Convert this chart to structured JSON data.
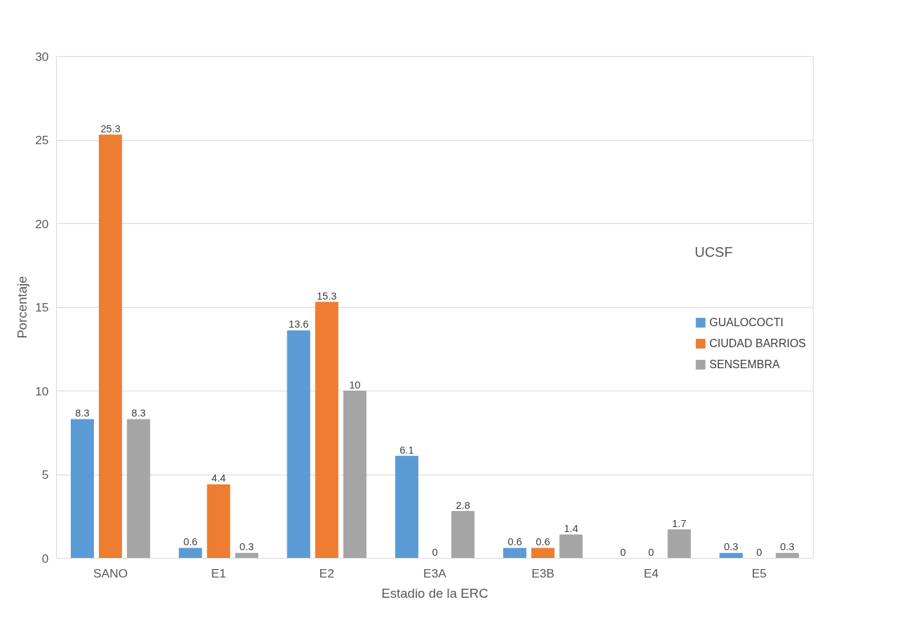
{
  "chart_data": {
    "type": "bar",
    "xlabel": "Estadio de la ERC",
    "ylabel": "Porcentaje",
    "legend_title": "UCSF",
    "categories": [
      "SANO",
      "E1",
      "E2",
      "E3A",
      "E3B",
      "E4",
      "E5"
    ],
    "series": [
      {
        "name": "GUALOCOCTI",
        "color": "#5b9bd5",
        "values": [
          8.3,
          0.6,
          13.6,
          6.1,
          0.6,
          0,
          0.3
        ]
      },
      {
        "name": "CIUDAD BARRIOS",
        "color": "#ed7d31",
        "values": [
          25.3,
          4.4,
          15.3,
          0,
          0.6,
          0,
          0
        ]
      },
      {
        "name": "SENSEMBRA",
        "color": "#a5a5a5",
        "values": [
          8.3,
          0.3,
          10,
          2.8,
          1.4,
          1.7,
          0.3
        ]
      }
    ],
    "ylim": [
      0,
      30
    ],
    "yticks": [
      0,
      5,
      10,
      15,
      20,
      25,
      30
    ],
    "grid": "y",
    "legend": "right",
    "data_labels": true
  }
}
